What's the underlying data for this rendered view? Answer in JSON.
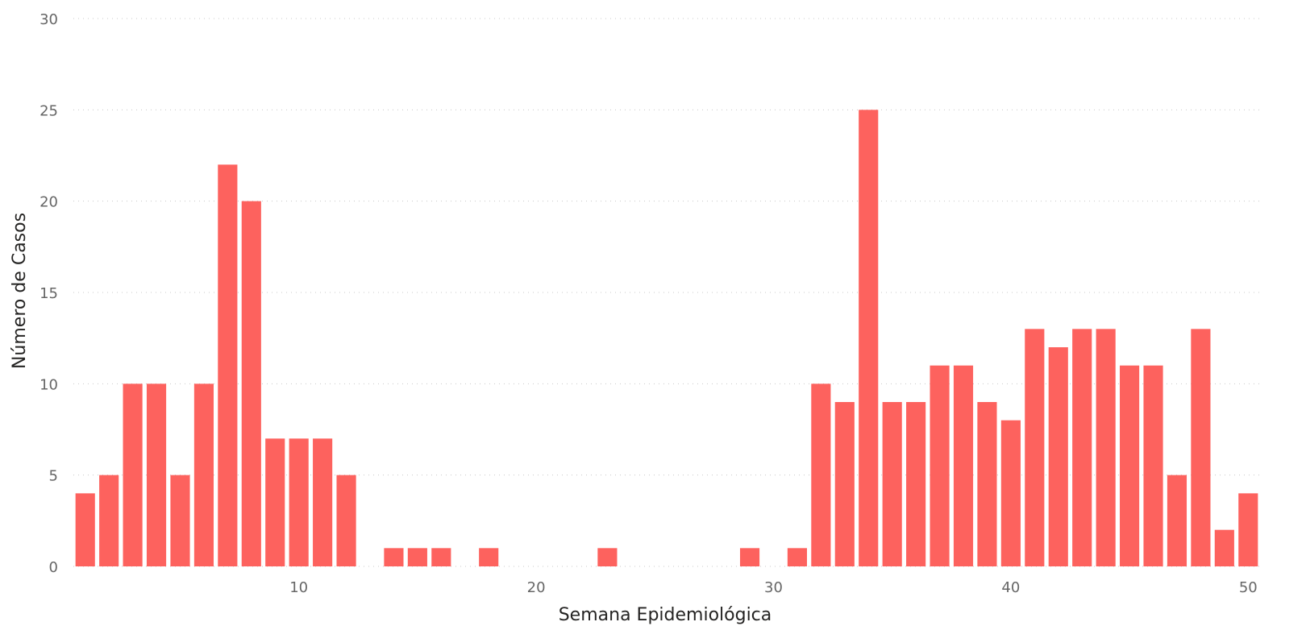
{
  "chart_data": {
    "type": "bar",
    "title": "",
    "xlabel": "Semana Epidemiológica",
    "ylabel": "Número de Casos",
    "x": [
      1,
      2,
      3,
      4,
      5,
      6,
      7,
      8,
      9,
      10,
      11,
      12,
      13,
      14,
      15,
      16,
      17,
      18,
      19,
      20,
      21,
      22,
      23,
      24,
      25,
      26,
      27,
      28,
      29,
      30,
      31,
      32,
      33,
      34,
      35,
      36,
      37,
      38,
      39,
      40,
      41,
      42,
      43,
      44,
      45,
      46,
      47,
      48,
      49,
      50
    ],
    "values": [
      4,
      5,
      10,
      10,
      5,
      10,
      22,
      20,
      7,
      7,
      7,
      5,
      0,
      1,
      1,
      1,
      0,
      1,
      0,
      0,
      0,
      0,
      1,
      0,
      0,
      0,
      0,
      0,
      1,
      0,
      1,
      10,
      9,
      25,
      9,
      9,
      11,
      11,
      9,
      8,
      13,
      12,
      13,
      13,
      11,
      11,
      5,
      13,
      2,
      4
    ],
    "xlim": [
      0.5,
      50.5
    ],
    "ylim": [
      0,
      30
    ],
    "xticks": [
      "10",
      "20",
      "30",
      "40",
      "50"
    ],
    "yticks": [
      "0",
      "5",
      "10",
      "15",
      "20",
      "25",
      "30"
    ],
    "grid": true,
    "bar_color": "#fd625e"
  }
}
